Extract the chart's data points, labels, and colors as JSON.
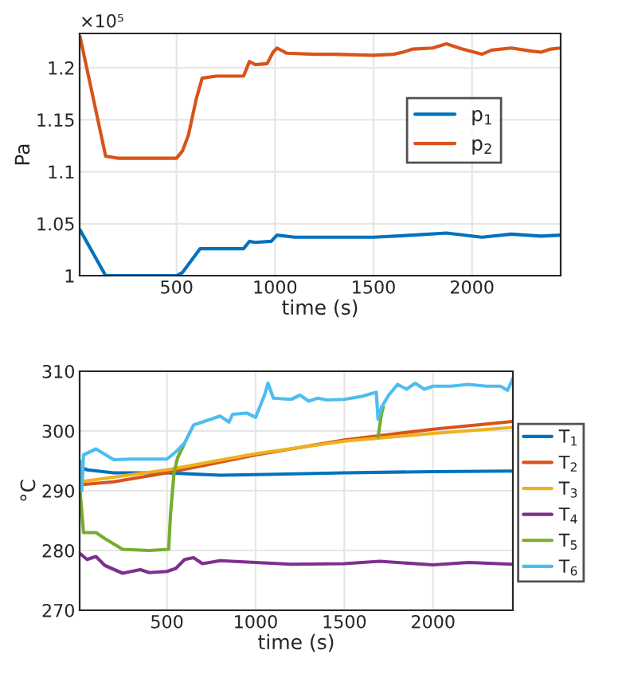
{
  "chart_data": [
    {
      "type": "line",
      "xlabel": "time (s)",
      "ylabel": "Pa",
      "annotations": [
        "×10⁵"
      ],
      "xlim": [
        8,
        2450
      ],
      "ylim": [
        1,
        1.233
      ],
      "xticks": [
        500,
        1000,
        1500,
        2000
      ],
      "yticks": [
        1,
        1.05,
        1.1,
        1.15,
        1.2
      ],
      "grid": true,
      "legend": "right",
      "line_style": "solid",
      "series": [
        {
          "name": "p$_{1}$",
          "color": "#0072bd",
          "x": [
            10,
            140,
            200,
            500,
            530,
            620,
            840,
            870,
            900,
            980,
            1010,
            1100,
            1500,
            1700,
            1870,
            2050,
            2200,
            2350,
            2450
          ],
          "values": [
            1.044,
            1.0,
            1.0,
            1.0,
            1.003,
            1.026,
            1.026,
            1.033,
            1.032,
            1.033,
            1.039,
            1.037,
            1.037,
            1.039,
            1.041,
            1.037,
            1.04,
            1.038,
            1.039
          ]
        },
        {
          "name": "p$_{2}$",
          "color": "#d95319",
          "x": [
            10,
            140,
            200,
            300,
            500,
            530,
            560,
            600,
            630,
            700,
            840,
            870,
            900,
            960,
            990,
            1010,
            1060,
            1200,
            1300,
            1500,
            1600,
            1650,
            1700,
            1800,
            1870,
            1950,
            2050,
            2100,
            2200,
            2300,
            2350,
            2400,
            2450
          ],
          "values": [
            1.23,
            1.115,
            1.113,
            1.113,
            1.113,
            1.12,
            1.135,
            1.17,
            1.19,
            1.192,
            1.192,
            1.206,
            1.203,
            1.204,
            1.215,
            1.219,
            1.214,
            1.213,
            1.213,
            1.212,
            1.213,
            1.215,
            1.218,
            1.219,
            1.223,
            1.218,
            1.213,
            1.217,
            1.219,
            1.216,
            1.215,
            1.218,
            1.219
          ]
        }
      ]
    },
    {
      "type": "line",
      "xlabel": "time (s)",
      "ylabel": "°C",
      "xlim": [
        8,
        2450
      ],
      "ylim": [
        270,
        310
      ],
      "xticks": [
        500,
        1000,
        1500,
        2000
      ],
      "yticks": [
        270,
        280,
        290,
        300,
        310
      ],
      "grid": true,
      "legend": "right",
      "line_style": "solid",
      "series": [
        {
          "name": "T$_{1}$",
          "color": "#0072bd",
          "x": [
            10,
            50,
            200,
            500,
            800,
            1000,
            1500,
            2000,
            2450
          ],
          "values": [
            294,
            293.5,
            293,
            293,
            292.6,
            292.7,
            293,
            293.2,
            293.3
          ]
        },
        {
          "name": "T$_{2}$",
          "color": "#d95319",
          "x": [
            10,
            200,
            500,
            1000,
            1500,
            2000,
            2450
          ],
          "values": [
            291,
            291.5,
            293,
            296,
            298.5,
            300.3,
            301.6
          ]
        },
        {
          "name": "T$_{3}$",
          "color": "#edb120",
          "x": [
            10,
            500,
            1000,
            1500,
            2000,
            2450
          ],
          "values": [
            291.5,
            293.5,
            296.2,
            298.3,
            299.6,
            300.6
          ]
        },
        {
          "name": "T$_{4}$",
          "color": "#7e2f8e",
          "x": [
            10,
            50,
            100,
            150,
            250,
            350,
            400,
            500,
            550,
            600,
            650,
            700,
            800,
            1000,
            1200,
            1500,
            1700,
            2000,
            2200,
            2450
          ],
          "values": [
            279.5,
            278.5,
            279,
            277.5,
            276.2,
            276.8,
            276.3,
            276.5,
            277,
            278.5,
            278.8,
            277.8,
            278.3,
            278,
            277.7,
            277.8,
            278.2,
            277.6,
            278,
            277.7
          ]
        },
        {
          "name": "T$_{5}$",
          "color": "#77ac30",
          "x": [
            10,
            30,
            100,
            150,
            250,
            400,
            510,
            520,
            540,
            560,
            600,
            650,
            1690,
            1710,
            1720
          ],
          "values": [
            290,
            283,
            283,
            282,
            280.2,
            280,
            280.2,
            286,
            293,
            295.5,
            298,
            null,
            299,
            303,
            304
          ]
        },
        {
          "name": "T$_{6}$",
          "color": "#4dbeee",
          "x": [
            10,
            20,
            30,
            100,
            200,
            300,
            500,
            550,
            600,
            650,
            700,
            800,
            850,
            870,
            950,
            1000,
            1050,
            1070,
            1100,
            1200,
            1250,
            1300,
            1350,
            1400,
            1500,
            1600,
            1680,
            1690,
            1710,
            1750,
            1800,
            1850,
            1900,
            1950,
            2000,
            2100,
            2200,
            2300,
            2380,
            2420,
            2450
          ],
          "values": [
            295,
            290,
            296,
            297,
            295.2,
            295.3,
            295.3,
            296.5,
            298,
            301,
            301.5,
            302.5,
            301.5,
            302.8,
            303,
            302.3,
            306,
            308,
            305.5,
            305.3,
            306,
            305,
            305.5,
            305.2,
            305.3,
            305.8,
            306.5,
            302,
            304,
            306,
            307.8,
            307,
            308,
            307,
            307.5,
            307.5,
            307.8,
            307.5,
            307.5,
            306.8,
            308.8
          ]
        }
      ]
    }
  ]
}
